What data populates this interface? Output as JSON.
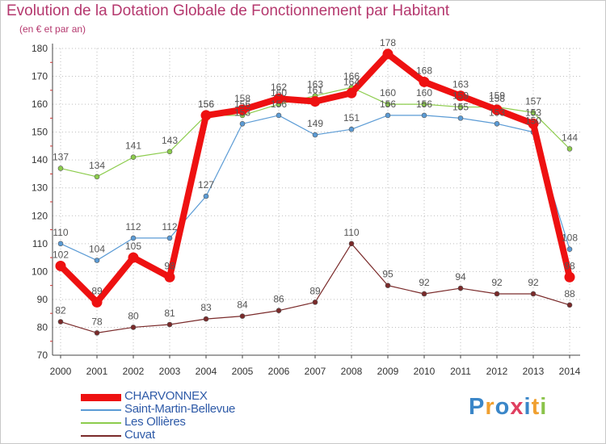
{
  "header": {
    "title": "Evolution de la Dotation Globale de Fonctionnement par Habitant",
    "subtitle": "(en € et par an)"
  },
  "logo": {
    "text": "Proxiti",
    "colors": [
      "#3a86c8",
      "#f0a030",
      "#3a86c8",
      "#e04060",
      "#3a86c8",
      "#f0a030",
      "#8bc34a"
    ]
  },
  "chart_data": {
    "type": "line",
    "title": "Evolution de la Dotation Globale de Fonctionnement par Habitant",
    "subtitle": "(en € et par an)",
    "xlabel": "",
    "ylabel": "",
    "ylim": [
      70,
      180
    ],
    "yticks": [
      70,
      80,
      90,
      100,
      110,
      120,
      130,
      140,
      150,
      160,
      170,
      180
    ],
    "grid": true,
    "legend": "bottom-left",
    "x": [
      2000,
      2001,
      2002,
      2003,
      2004,
      2005,
      2006,
      2007,
      2008,
      2009,
      2010,
      2011,
      2012,
      2013,
      2014
    ],
    "series": [
      {
        "name": "CHARVONNEX",
        "color": "#ee1111",
        "values": [
          102,
          89,
          105,
          98,
          156,
          158,
          162,
          161,
          164,
          178,
          168,
          163,
          158,
          153,
          98
        ]
      },
      {
        "name": "Saint-Martin-Bellevue",
        "color": "#5b9bd5",
        "values": [
          110,
          104,
          112,
          112,
          127,
          153,
          156,
          149,
          151,
          156,
          156,
          155,
          153,
          150,
          108
        ]
      },
      {
        "name": "Les Ollières",
        "color": "#8ccc4c",
        "values": [
          137,
          134,
          141,
          143,
          156,
          156,
          160,
          163,
          166,
          160,
          160,
          159,
          159,
          157,
          144
        ]
      },
      {
        "name": "Cuvat",
        "color": "#7a2a2a",
        "values": [
          82,
          78,
          80,
          81,
          83,
          84,
          86,
          89,
          110,
          95,
          92,
          94,
          92,
          92,
          88
        ]
      }
    ]
  }
}
